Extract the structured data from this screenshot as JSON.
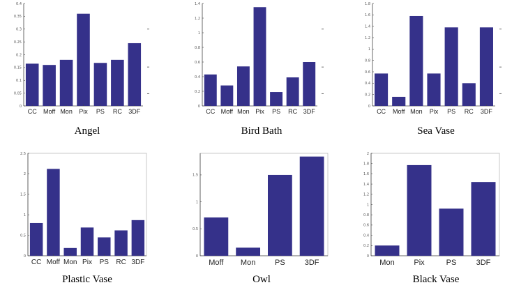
{
  "colors": {
    "bar": "#35318a",
    "axis": "#444444",
    "background": "#ffffff"
  },
  "chart_data": [
    {
      "type": "bar",
      "title": "Angel",
      "categories": [
        "CC",
        "Moff",
        "Mon",
        "Pix",
        "PS",
        "RC",
        "3DF"
      ],
      "values": [
        0.165,
        0.16,
        0.18,
        0.36,
        0.168,
        0.18,
        0.245
      ],
      "ylim": [
        0,
        0.4
      ],
      "yticks": [
        0,
        0.05,
        0.1,
        0.15,
        0.2,
        0.25,
        0.3,
        0.35,
        0.4
      ],
      "ytick_labels": [
        "0",
        "0.05",
        "0.1",
        "0.15",
        "0.2",
        "0.25",
        "0.3",
        "0.35",
        "0.4"
      ]
    },
    {
      "type": "bar",
      "title": "Bird Bath",
      "categories": [
        "CC",
        "Moff",
        "Mon",
        "Pix",
        "PS",
        "RC",
        "3DF"
      ],
      "values": [
        0.43,
        0.28,
        0.54,
        1.35,
        0.19,
        0.39,
        0.6
      ],
      "ylim": [
        0,
        1.4
      ],
      "yticks": [
        0,
        0.2,
        0.4,
        0.6,
        0.8,
        1,
        1.2,
        1.4
      ],
      "ytick_labels": [
        "0",
        "0.2",
        "0.4",
        "0.6",
        "0.8",
        "1",
        "1.2",
        "1.4"
      ]
    },
    {
      "type": "bar",
      "title": "Sea Vase",
      "categories": [
        "CC",
        "Moff",
        "Mon",
        "Pix",
        "PS",
        "RC",
        "3DF"
      ],
      "values": [
        0.57,
        0.16,
        1.58,
        0.57,
        1.38,
        0.4,
        1.38
      ],
      "ylim": [
        0,
        1.8
      ],
      "yticks": [
        0,
        0.2,
        0.4,
        0.6,
        0.8,
        1,
        1.2,
        1.4,
        1.6,
        1.8
      ],
      "ytick_labels": [
        "0",
        "0.2",
        "0.4",
        "0.6",
        "0.8",
        "1",
        "1.2",
        "1.4",
        "1.6",
        "1.8"
      ]
    },
    {
      "type": "bar",
      "title": "Plastic Vase",
      "categories": [
        "CC",
        "Moff",
        "Mon",
        "Pix",
        "PS",
        "RC",
        "3DF"
      ],
      "values": [
        0.8,
        2.12,
        0.19,
        0.69,
        0.45,
        0.62,
        0.87
      ],
      "ylim": [
        0,
        2.5
      ],
      "yticks": [
        0,
        0.5,
        1,
        1.5,
        2,
        2.5
      ],
      "ytick_labels": [
        "0",
        "0.5",
        "1",
        "1.5",
        "2",
        "2.5"
      ]
    },
    {
      "type": "bar",
      "title": "Owl",
      "categories": [
        "Moff",
        "Mon",
        "PS",
        "3DF"
      ],
      "values": [
        0.71,
        0.15,
        1.5,
        1.84
      ],
      "ylim": [
        0,
        1.9
      ],
      "yticks": [
        0,
        0.5,
        1,
        1.5
      ],
      "ytick_labels": [
        "0",
        "0.5",
        "1",
        "1.5"
      ]
    },
    {
      "type": "bar",
      "title": "Black Vase",
      "categories": [
        "Mon",
        "Pix",
        "PS",
        "3DF"
      ],
      "values": [
        0.2,
        1.77,
        0.92,
        1.44
      ],
      "ylim": [
        0,
        2
      ],
      "yticks": [
        0,
        0.2,
        0.4,
        0.6,
        0.8,
        1,
        1.2,
        1.4,
        1.6,
        1.8,
        2
      ],
      "ytick_labels": [
        "0",
        "0.2",
        "0.4",
        "0.6",
        "0.8",
        "1",
        "1.2",
        "1.4",
        "1.6",
        "1.8",
        "2"
      ]
    }
  ]
}
